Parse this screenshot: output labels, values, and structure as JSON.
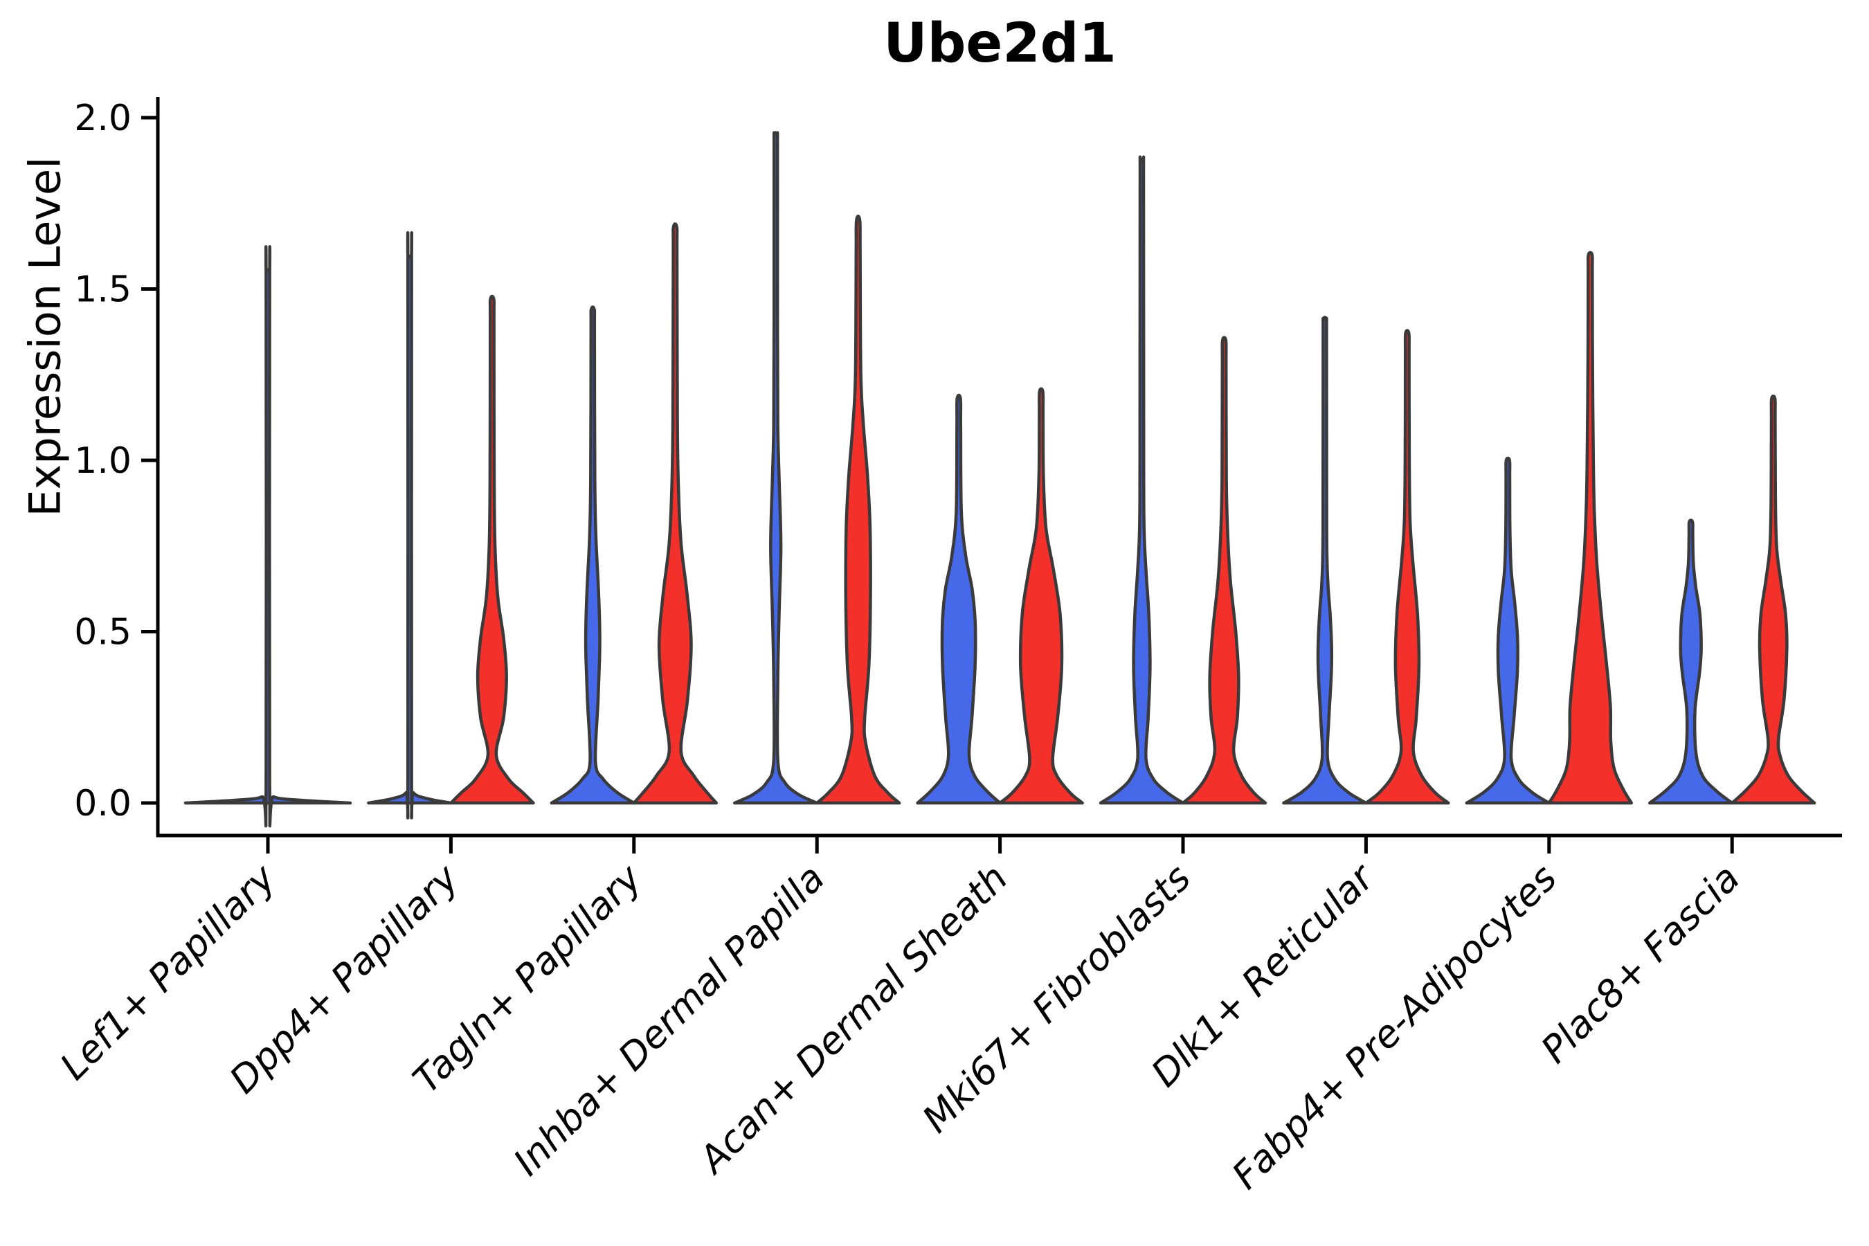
{
  "chart_data": {
    "type": "violin",
    "title": "Ube2d1",
    "xlabel": "",
    "ylabel": "Expression Level",
    "background": "#ffffff",
    "grid": false,
    "legend": null,
    "axis_color": "#000000",
    "outline_color": "#3a3a3a",
    "yticks": [
      0.0,
      0.5,
      1.0,
      1.5,
      2.0
    ],
    "ylim": [
      -0.095,
      2.06
    ],
    "categories": [
      "Lef1+ Papillary",
      "Dpp4+ Papillary",
      "Tagln+ Papillary",
      "Inhba+ Dermal Papilla",
      "Acan+ Dermal Sheath",
      "Mki67+ Fibroblasts",
      "Dlk1+ Reticular",
      "Fabp4+ Pre-Adipocytes",
      "Plac8+ Fascia"
    ],
    "groups": [
      {
        "name": "blue",
        "color": "#4569E8"
      },
      {
        "name": "red",
        "color": "#F4302B"
      }
    ],
    "violins": [
      {
        "category_index": 0,
        "group": "single",
        "color": "#4569E8",
        "max": 1.55,
        "offset": 0,
        "width_scale": 2.0,
        "profile": [
          [
            0,
            1.0
          ],
          [
            0.008,
            0.4
          ],
          [
            0.018,
            0.07
          ],
          [
            0.05,
            0.022
          ],
          [
            1.5,
            0.022
          ],
          [
            1.55,
            0.02
          ]
        ]
      },
      {
        "category_index": 1,
        "group": "blue",
        "color": "#4569E8",
        "max": 1.59,
        "offset": -1,
        "width_scale": 1.0,
        "profile": [
          [
            0,
            1.0
          ],
          [
            0.012,
            0.45
          ],
          [
            0.03,
            0.09
          ],
          [
            0.08,
            0.046
          ],
          [
            1.54,
            0.046
          ],
          [
            1.59,
            0.04
          ]
        ]
      },
      {
        "category_index": 1,
        "group": "red",
        "color": "#F4302B",
        "max": 1.47,
        "offset": 1,
        "width_scale": 1.0,
        "profile": [
          [
            0,
            1.0
          ],
          [
            0.03,
            0.75
          ],
          [
            0.07,
            0.4
          ],
          [
            0.14,
            0.1
          ],
          [
            0.25,
            0.28
          ],
          [
            0.37,
            0.35
          ],
          [
            0.48,
            0.28
          ],
          [
            0.6,
            0.14
          ],
          [
            0.75,
            0.07
          ],
          [
            0.95,
            0.05
          ],
          [
            1.4,
            0.046
          ],
          [
            1.47,
            0.04
          ]
        ]
      },
      {
        "category_index": 2,
        "group": "blue",
        "color": "#4569E8",
        "max": 1.44,
        "offset": -1,
        "width_scale": 1.0,
        "profile": [
          [
            0,
            1.0
          ],
          [
            0.03,
            0.6
          ],
          [
            0.07,
            0.25
          ],
          [
            0.12,
            0.065
          ],
          [
            0.3,
            0.13
          ],
          [
            0.42,
            0.165
          ],
          [
            0.5,
            0.17
          ],
          [
            0.62,
            0.14
          ],
          [
            0.78,
            0.075
          ],
          [
            0.95,
            0.05
          ],
          [
            1.38,
            0.042
          ],
          [
            1.44,
            0.036
          ]
        ]
      },
      {
        "category_index": 2,
        "group": "red",
        "color": "#F4302B",
        "max": 1.68,
        "offset": 1,
        "width_scale": 1.0,
        "profile": [
          [
            0,
            1.0
          ],
          [
            0.03,
            0.78
          ],
          [
            0.08,
            0.45
          ],
          [
            0.15,
            0.145
          ],
          [
            0.3,
            0.3
          ],
          [
            0.46,
            0.39
          ],
          [
            0.6,
            0.3
          ],
          [
            0.75,
            0.15
          ],
          [
            0.9,
            0.085
          ],
          [
            1.1,
            0.055
          ],
          [
            1.6,
            0.046
          ],
          [
            1.68,
            0.04
          ]
        ]
      },
      {
        "category_index": 3,
        "group": "blue",
        "color": "#4569E8",
        "max": 1.95,
        "offset": -1,
        "width_scale": 1.0,
        "profile": [
          [
            0,
            1.0
          ],
          [
            0.025,
            0.55
          ],
          [
            0.06,
            0.22
          ],
          [
            0.12,
            0.052
          ],
          [
            0.35,
            0.048
          ],
          [
            0.55,
            0.08
          ],
          [
            0.75,
            0.125
          ],
          [
            0.95,
            0.08
          ],
          [
            1.1,
            0.05
          ],
          [
            1.4,
            0.042
          ],
          [
            1.9,
            0.042
          ],
          [
            1.95,
            0.036
          ]
        ]
      },
      {
        "category_index": 3,
        "group": "red",
        "color": "#F4302B",
        "max": 1.7,
        "offset": 1,
        "width_scale": 1.0,
        "profile": [
          [
            0,
            1.0
          ],
          [
            0.03,
            0.72
          ],
          [
            0.08,
            0.4
          ],
          [
            0.18,
            0.175
          ],
          [
            0.25,
            0.16
          ],
          [
            0.4,
            0.26
          ],
          [
            0.6,
            0.3
          ],
          [
            0.8,
            0.29
          ],
          [
            0.95,
            0.23
          ],
          [
            1.1,
            0.13
          ],
          [
            1.25,
            0.065
          ],
          [
            1.6,
            0.048
          ],
          [
            1.7,
            0.04
          ]
        ]
      },
      {
        "category_index": 4,
        "group": "blue",
        "color": "#4569E8",
        "max": 1.18,
        "offset": -1,
        "width_scale": 1.0,
        "profile": [
          [
            0,
            1.0
          ],
          [
            0.035,
            0.68
          ],
          [
            0.08,
            0.38
          ],
          [
            0.14,
            0.25
          ],
          [
            0.25,
            0.32
          ],
          [
            0.4,
            0.395
          ],
          [
            0.52,
            0.4
          ],
          [
            0.62,
            0.33
          ],
          [
            0.72,
            0.17
          ],
          [
            0.85,
            0.062
          ],
          [
            1.1,
            0.046
          ],
          [
            1.18,
            0.04
          ]
        ]
      },
      {
        "category_index": 4,
        "group": "red",
        "color": "#F4302B",
        "max": 1.2,
        "offset": 1,
        "width_scale": 1.0,
        "profile": [
          [
            0,
            1.0
          ],
          [
            0.03,
            0.7
          ],
          [
            0.08,
            0.38
          ],
          [
            0.13,
            0.28
          ],
          [
            0.25,
            0.4
          ],
          [
            0.4,
            0.5
          ],
          [
            0.55,
            0.46
          ],
          [
            0.68,
            0.3
          ],
          [
            0.8,
            0.12
          ],
          [
            0.95,
            0.055
          ],
          [
            1.13,
            0.046
          ],
          [
            1.2,
            0.04
          ]
        ]
      },
      {
        "category_index": 5,
        "group": "blue",
        "color": "#4569E8",
        "max": 1.87,
        "offset": -1,
        "width_scale": 1.0,
        "profile": [
          [
            0,
            1.0
          ],
          [
            0.03,
            0.62
          ],
          [
            0.07,
            0.28
          ],
          [
            0.13,
            0.1
          ],
          [
            0.25,
            0.155
          ],
          [
            0.4,
            0.2
          ],
          [
            0.55,
            0.17
          ],
          [
            0.68,
            0.1
          ],
          [
            0.8,
            0.055
          ],
          [
            1.0,
            0.046
          ],
          [
            1.8,
            0.042
          ],
          [
            1.87,
            0.036
          ]
        ]
      },
      {
        "category_index": 5,
        "group": "red",
        "color": "#F4302B",
        "max": 1.35,
        "offset": 1,
        "width_scale": 1.0,
        "profile": [
          [
            0,
            1.0
          ],
          [
            0.03,
            0.72
          ],
          [
            0.08,
            0.42
          ],
          [
            0.15,
            0.23
          ],
          [
            0.25,
            0.32
          ],
          [
            0.37,
            0.35
          ],
          [
            0.5,
            0.28
          ],
          [
            0.65,
            0.15
          ],
          [
            0.8,
            0.08
          ],
          [
            0.95,
            0.052
          ],
          [
            1.28,
            0.046
          ],
          [
            1.35,
            0.04
          ]
        ]
      },
      {
        "category_index": 6,
        "group": "blue",
        "color": "#4569E8",
        "max": 1.41,
        "offset": -1,
        "width_scale": 1.0,
        "profile": [
          [
            0,
            1.0
          ],
          [
            0.03,
            0.58
          ],
          [
            0.07,
            0.24
          ],
          [
            0.13,
            0.065
          ],
          [
            0.25,
            0.1
          ],
          [
            0.37,
            0.155
          ],
          [
            0.45,
            0.165
          ],
          [
            0.55,
            0.13
          ],
          [
            0.65,
            0.07
          ],
          [
            0.8,
            0.046
          ],
          [
            1.35,
            0.042
          ],
          [
            1.41,
            0.036
          ]
        ]
      },
      {
        "category_index": 6,
        "group": "red",
        "color": "#F4302B",
        "max": 1.37,
        "offset": 1,
        "width_scale": 1.0,
        "profile": [
          [
            0,
            1.0
          ],
          [
            0.03,
            0.68
          ],
          [
            0.08,
            0.35
          ],
          [
            0.15,
            0.15
          ],
          [
            0.25,
            0.22
          ],
          [
            0.4,
            0.285
          ],
          [
            0.55,
            0.25
          ],
          [
            0.7,
            0.14
          ],
          [
            0.82,
            0.07
          ],
          [
            1.0,
            0.05
          ],
          [
            1.3,
            0.046
          ],
          [
            1.37,
            0.04
          ]
        ]
      },
      {
        "category_index": 7,
        "group": "blue",
        "color": "#4569E8",
        "max": 1.0,
        "offset": -1,
        "width_scale": 1.0,
        "profile": [
          [
            0,
            1.0
          ],
          [
            0.03,
            0.6
          ],
          [
            0.07,
            0.26
          ],
          [
            0.13,
            0.08
          ],
          [
            0.25,
            0.15
          ],
          [
            0.38,
            0.23
          ],
          [
            0.48,
            0.235
          ],
          [
            0.58,
            0.17
          ],
          [
            0.68,
            0.08
          ],
          [
            0.8,
            0.05
          ],
          [
            0.95,
            0.046
          ],
          [
            1.0,
            0.04
          ]
        ]
      },
      {
        "category_index": 7,
        "group": "red",
        "color": "#F4302B",
        "max": 1.6,
        "offset": 1,
        "width_scale": 1.0,
        "profile": [
          [
            0,
            1.0
          ],
          [
            0.04,
            0.8
          ],
          [
            0.1,
            0.58
          ],
          [
            0.18,
            0.5
          ],
          [
            0.28,
            0.49
          ],
          [
            0.4,
            0.4
          ],
          [
            0.55,
            0.27
          ],
          [
            0.7,
            0.16
          ],
          [
            0.85,
            0.1
          ],
          [
            1.0,
            0.075
          ],
          [
            1.3,
            0.055
          ],
          [
            1.55,
            0.05
          ],
          [
            1.6,
            0.044
          ]
        ]
      },
      {
        "category_index": 8,
        "group": "blue",
        "color": "#4569E8",
        "max": 0.82,
        "offset": -1,
        "width_scale": 1.0,
        "profile": [
          [
            0,
            1.0
          ],
          [
            0.035,
            0.62
          ],
          [
            0.08,
            0.28
          ],
          [
            0.15,
            0.12
          ],
          [
            0.27,
            0.1
          ],
          [
            0.38,
            0.21
          ],
          [
            0.45,
            0.25
          ],
          [
            0.55,
            0.22
          ],
          [
            0.63,
            0.12
          ],
          [
            0.7,
            0.06
          ],
          [
            0.78,
            0.046
          ],
          [
            0.82,
            0.04
          ]
        ]
      },
      {
        "category_index": 8,
        "group": "red",
        "color": "#F4302B",
        "max": 1.18,
        "offset": 1,
        "width_scale": 1.0,
        "profile": [
          [
            0,
            1.0
          ],
          [
            0.035,
            0.68
          ],
          [
            0.08,
            0.36
          ],
          [
            0.14,
            0.16
          ],
          [
            0.19,
            0.13
          ],
          [
            0.3,
            0.26
          ],
          [
            0.45,
            0.33
          ],
          [
            0.55,
            0.3
          ],
          [
            0.65,
            0.18
          ],
          [
            0.75,
            0.08
          ],
          [
            0.9,
            0.052
          ],
          [
            1.12,
            0.046
          ],
          [
            1.18,
            0.04
          ]
        ]
      }
    ]
  }
}
